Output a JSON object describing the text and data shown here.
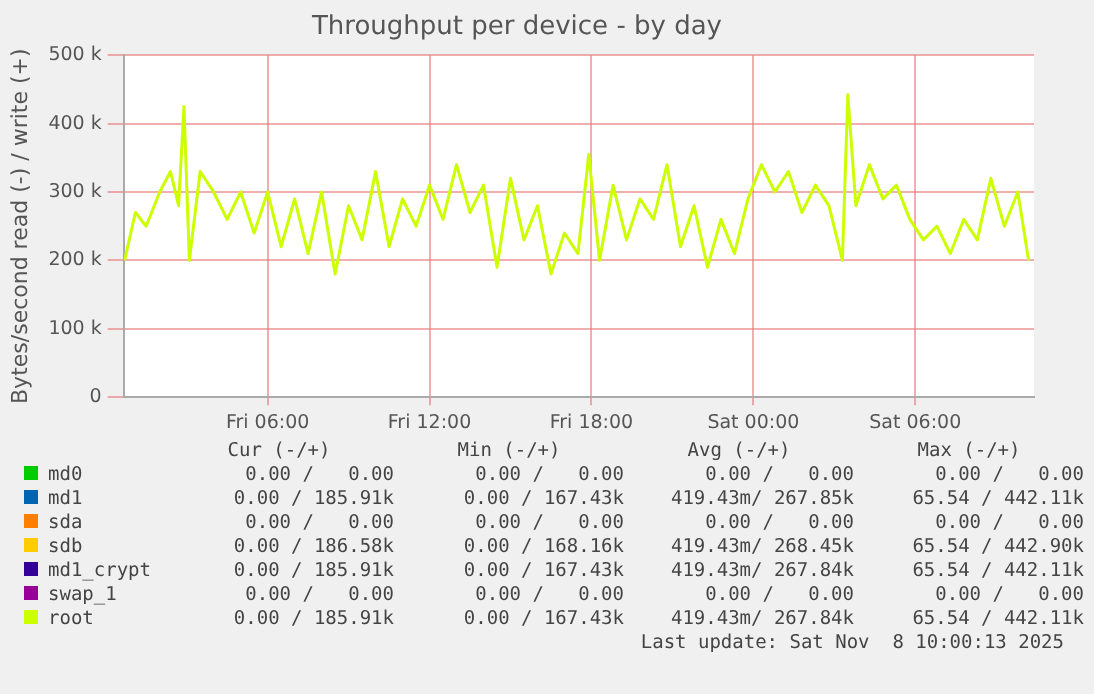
{
  "chart_data": {
    "type": "line",
    "title": "Throughput per device - by day",
    "ylabel": "Bytes/second read (-) / write (+)",
    "x": [
      "2025-11-07T00:42",
      "2025-11-07T01:06",
      "2025-11-07T01:30",
      "2025-11-07T02:00",
      "2025-11-07T02:24",
      "2025-11-07T02:42",
      "2025-11-07T02:54",
      "2025-11-07T03:06",
      "2025-11-07T03:30",
      "2025-11-07T04:00",
      "2025-11-07T04:30",
      "2025-11-07T05:00",
      "2025-11-07T05:30",
      "2025-11-07T06:00",
      "2025-11-07T06:30",
      "2025-11-07T07:00",
      "2025-11-07T07:30",
      "2025-11-07T08:00",
      "2025-11-07T08:30",
      "2025-11-07T09:00",
      "2025-11-07T09:30",
      "2025-11-07T10:00",
      "2025-11-07T10:30",
      "2025-11-07T11:00",
      "2025-11-07T11:30",
      "2025-11-07T12:00",
      "2025-11-07T12:30",
      "2025-11-07T13:00",
      "2025-11-07T13:30",
      "2025-11-07T14:00",
      "2025-11-07T14:30",
      "2025-11-07T15:00",
      "2025-11-07T15:30",
      "2025-11-07T16:00",
      "2025-11-07T16:30",
      "2025-11-07T17:00",
      "2025-11-07T17:30",
      "2025-11-07T17:54",
      "2025-11-07T18:18",
      "2025-11-07T18:48",
      "2025-11-07T19:18",
      "2025-11-07T19:48",
      "2025-11-07T20:18",
      "2025-11-07T20:48",
      "2025-11-07T21:18",
      "2025-11-07T21:48",
      "2025-11-07T22:18",
      "2025-11-07T22:48",
      "2025-11-07T23:18",
      "2025-11-07T23:48",
      "2025-11-08T00:18",
      "2025-11-08T00:48",
      "2025-11-08T01:18",
      "2025-11-08T01:48",
      "2025-11-08T02:18",
      "2025-11-08T02:48",
      "2025-11-08T03:18",
      "2025-11-08T03:30",
      "2025-11-08T03:48",
      "2025-11-08T04:18",
      "2025-11-08T04:48",
      "2025-11-08T05:18",
      "2025-11-08T05:48",
      "2025-11-08T06:18",
      "2025-11-08T06:48",
      "2025-11-08T07:18",
      "2025-11-08T07:48",
      "2025-11-08T08:18",
      "2025-11-08T08:48",
      "2025-11-08T09:18",
      "2025-11-08T09:48",
      "2025-11-08T10:12"
    ],
    "xlim": [
      "2025-11-07T00:40",
      "2025-11-08T10:24"
    ],
    "xticks": [
      {
        "value": "2025-11-07T06:00",
        "label": "Fri 06:00"
      },
      {
        "value": "2025-11-07T12:00",
        "label": "Fri 12:00"
      },
      {
        "value": "2025-11-07T18:00",
        "label": "Fri 18:00"
      },
      {
        "value": "2025-11-08T00:00",
        "label": "Sat 00:00"
      },
      {
        "value": "2025-11-08T06:00",
        "label": "Sat 06:00"
      }
    ],
    "ylim": [
      0,
      500
    ],
    "yticks": [
      {
        "value": 0,
        "label": "0"
      },
      {
        "value": 100,
        "label": "100 k"
      },
      {
        "value": 200,
        "label": "200 k"
      },
      {
        "value": 300,
        "label": "300 k"
      },
      {
        "value": 400,
        "label": "400 k"
      },
      {
        "value": 500,
        "label": "500 k"
      }
    ],
    "grid": true,
    "legend": "bottom",
    "line_style": "solid",
    "series": [
      {
        "name": "md0",
        "color": "#00cc00",
        "values": [
          null,
          null,
          null,
          null,
          null,
          null,
          null,
          null,
          null,
          null,
          null,
          null,
          null,
          null,
          null,
          null,
          null,
          null,
          null,
          null,
          null,
          null,
          null,
          null,
          null,
          null,
          null,
          null,
          null,
          null,
          null,
          null,
          null,
          null,
          null,
          null,
          null,
          null,
          null,
          null,
          null,
          null,
          null,
          null,
          null,
          null,
          null,
          null,
          null,
          null,
          null,
          null,
          null,
          null,
          null,
          null,
          null,
          null,
          null,
          null,
          null,
          null,
          null,
          null,
          null,
          null,
          null,
          null,
          null,
          null,
          null,
          null
        ]
      },
      {
        "name": "md1",
        "color": "#0066b3",
        "values": [
          null,
          null,
          null,
          null,
          null,
          null,
          null,
          null,
          null,
          null,
          null,
          null,
          null,
          null,
          null,
          null,
          null,
          null,
          null,
          null,
          null,
          null,
          null,
          null,
          null,
          null,
          null,
          null,
          null,
          null,
          null,
          null,
          null,
          null,
          null,
          null,
          null,
          null,
          null,
          null,
          null,
          null,
          null,
          null,
          null,
          null,
          null,
          null,
          null,
          null,
          null,
          null,
          null,
          null,
          null,
          null,
          null,
          null,
          null,
          null,
          null,
          null,
          null,
          null,
          null,
          null,
          null,
          null,
          null,
          null,
          null,
          null
        ]
      },
      {
        "name": "sda",
        "color": "#ff8000",
        "values": [
          null,
          null,
          null,
          null,
          null,
          null,
          null,
          null,
          null,
          null,
          null,
          null,
          null,
          null,
          null,
          null,
          null,
          null,
          null,
          null,
          null,
          null,
          null,
          null,
          null,
          null,
          null,
          null,
          null,
          null,
          null,
          null,
          null,
          null,
          null,
          null,
          null,
          null,
          null,
          null,
          null,
          null,
          null,
          null,
          null,
          null,
          null,
          null,
          null,
          null,
          null,
          null,
          null,
          null,
          null,
          null,
          null,
          null,
          null,
          null,
          null,
          null,
          null,
          null,
          null,
          null,
          null,
          null,
          null,
          null,
          null,
          null
        ]
      },
      {
        "name": "sdb",
        "color": "#ffcc00",
        "values": [
          null,
          null,
          null,
          null,
          null,
          null,
          null,
          null,
          null,
          null,
          null,
          null,
          null,
          null,
          null,
          null,
          null,
          null,
          null,
          null,
          null,
          null,
          null,
          null,
          null,
          null,
          null,
          null,
          null,
          null,
          null,
          null,
          null,
          null,
          null,
          null,
          null,
          null,
          null,
          null,
          null,
          null,
          null,
          null,
          null,
          null,
          null,
          null,
          null,
          null,
          null,
          null,
          null,
          null,
          null,
          null,
          null,
          null,
          null,
          null,
          null,
          null,
          null,
          null,
          null,
          null,
          null,
          null,
          null,
          null,
          null,
          null
        ]
      },
      {
        "name": "md1_crypt",
        "color": "#330099",
        "values": [
          null,
          null,
          null,
          null,
          null,
          null,
          null,
          null,
          null,
          null,
          null,
          null,
          null,
          null,
          null,
          null,
          null,
          null,
          null,
          null,
          null,
          null,
          null,
          null,
          null,
          null,
          null,
          null,
          null,
          null,
          null,
          null,
          null,
          null,
          null,
          null,
          null,
          null,
          null,
          null,
          null,
          null,
          null,
          null,
          null,
          null,
          null,
          null,
          null,
          null,
          null,
          null,
          null,
          null,
          null,
          null,
          null,
          null,
          null,
          null,
          null,
          null,
          null,
          null,
          null,
          null,
          null,
          null,
          null,
          null,
          null,
          null
        ]
      },
      {
        "name": "swap_1",
        "color": "#990099",
        "values": [
          null,
          null,
          null,
          null,
          null,
          null,
          null,
          null,
          null,
          null,
          null,
          null,
          null,
          null,
          null,
          null,
          null,
          null,
          null,
          null,
          null,
          null,
          null,
          null,
          null,
          null,
          null,
          null,
          null,
          null,
          null,
          null,
          null,
          null,
          null,
          null,
          null,
          null,
          null,
          null,
          null,
          null,
          null,
          null,
          null,
          null,
          null,
          null,
          null,
          null,
          null,
          null,
          null,
          null,
          null,
          null,
          null,
          null,
          null,
          null,
          null,
          null,
          null,
          null,
          null,
          null,
          null,
          null,
          null,
          null,
          null,
          null
        ]
      },
      {
        "name": "root",
        "color": "#ccff00",
        "values": [
          200,
          270,
          250,
          300,
          330,
          280,
          425,
          200,
          330,
          300,
          260,
          300,
          240,
          300,
          220,
          290,
          210,
          300,
          180,
          280,
          230,
          330,
          220,
          290,
          250,
          310,
          260,
          340,
          270,
          310,
          190,
          320,
          230,
          280,
          180,
          240,
          210,
          355,
          200,
          310,
          230,
          290,
          260,
          340,
          220,
          280,
          190,
          260,
          210,
          290,
          340,
          300,
          330,
          270,
          310,
          280,
          200,
          442,
          280,
          340,
          290,
          310,
          260,
          230,
          250,
          210,
          260,
          230,
          320,
          250,
          300,
          200
        ]
      }
    ],
    "annotations": [
      "Cur (-/+)",
      "Min (-/+)",
      "Avg (-/+)",
      "Max (-/+)",
      "0.00 /   0.00",
      "0.00 /   0.00",
      "0.00 /   0.00",
      "0.00 /   0.00",
      "0.00 / 185.91k",
      "0.00 / 167.43k",
      "419.43m/ 267.85k",
      "65.54 / 442.11k",
      "0.00 /   0.00",
      "0.00 /   0.00",
      "0.00 /   0.00",
      "0.00 /   0.00",
      "0.00 / 186.58k",
      "0.00 / 168.16k",
      "419.43m/ 268.45k",
      "65.54 / 442.90k",
      "0.00 / 185.91k",
      "0.00 / 167.43k",
      "419.43m/ 267.84k",
      "65.54 / 442.11k",
      "0.00 /   0.00",
      "0.00 /   0.00",
      "0.00 /   0.00",
      "0.00 /   0.00",
      "0.00 / 185.91k",
      "0.00 / 167.43k",
      "419.43m/ 267.84k",
      "65.54 / 442.11k",
      "Last update: Sat Nov  8 10:00:13 2025"
    ]
  }
}
